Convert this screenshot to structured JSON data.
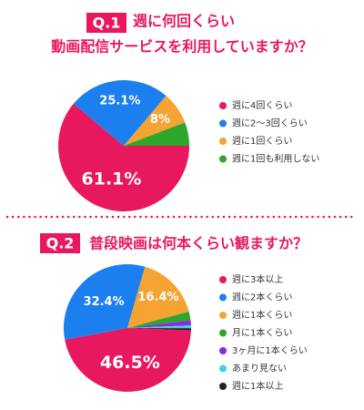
{
  "chart_data": [
    {
      "type": "pie",
      "badge": "Q.1",
      "title": [
        "週に何回くらい",
        "動画配信サービスを利用していますか？"
      ],
      "categories": [
        "週に4回くらい",
        "週に2〜3回くらい",
        "週に1回くらい",
        "週に1回も利用しない"
      ],
      "values": [
        61.1,
        25.1,
        8,
        5.8
      ],
      "value_labels": [
        "61.1%",
        "25.1%",
        "8%",
        null
      ],
      "colors": [
        "#e8185e",
        "#1c7ff0",
        "#f5a332",
        "#2ea62c"
      ]
    },
    {
      "type": "pie",
      "badge": "Q.2",
      "title": [
        "普段映画は何本くらい観ますか？"
      ],
      "categories": [
        "週に3本以上",
        "週に2本くらい",
        "週に1本くらい",
        "月に1本くらい",
        "3ヶ月に1本くらい",
        "あまり見ない",
        "週に1本以上"
      ],
      "values": [
        46.5,
        32.4,
        16.4,
        2.2,
        1.3,
        0.7,
        0.5
      ],
      "value_labels": [
        "46.5%",
        "32.4%",
        "16.4%",
        null,
        null,
        null,
        null
      ],
      "colors": [
        "#e8185e",
        "#1c7ff0",
        "#f5a332",
        "#2ea62c",
        "#8a2be2",
        "#3dd6d6",
        "#222222"
      ]
    }
  ]
}
